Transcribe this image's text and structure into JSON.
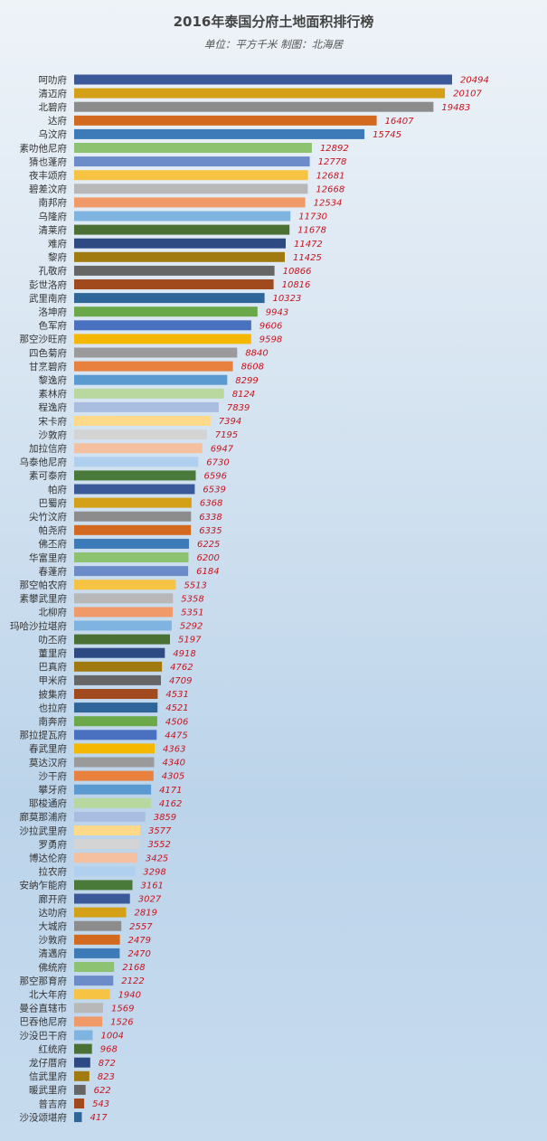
{
  "chart_data": {
    "type": "bar",
    "orientation": "horizontal",
    "title": "2016年泰国分府土地面积排行榜",
    "subtitle": "单位：平方千米 制图：北海居",
    "categories": [
      "呵叻府",
      "清迈府",
      "北碧府",
      "达府",
      "乌汶府",
      "素叻他尼府",
      "猜也蓬府",
      "夜丰颂府",
      "碧差汶府",
      "南邦府",
      "乌隆府",
      "清莱府",
      "难府",
      "黎府",
      "孔敬府",
      "彭世洛府",
      "武里南府",
      "洛坤府",
      "色军府",
      "那空沙旺府",
      "四色菊府",
      "甘烹碧府",
      "黎逸府",
      "素林府",
      "程逸府",
      "宋卡府",
      "沙敦府",
      "加拉信府",
      "乌泰他尼府",
      "素可泰府",
      "帕府",
      "巴蜀府",
      "尖竹汶府",
      "帕尧府",
      "佛丕府",
      "华富里府",
      "春蓬府",
      "那空帕农府",
      "素攀武里府",
      "北柳府",
      "玛哈沙拉堪府",
      "叻丕府",
      "董里府",
      "巴真府",
      "甲米府",
      "披集府",
      "也拉府",
      "南奔府",
      "那拉提瓦府",
      "春武里府",
      "莫达汉府",
      "沙干府",
      "攀牙府",
      "耶梭通府",
      "廊莫那浦府",
      "沙拉武里府",
      "罗勇府",
      "博达伦府",
      "拉农府",
      "安纳乍能府",
      "廊开府",
      "达叻府",
      "大城府",
      "沙敦府",
      "清邁府",
      "佛统府",
      "那空那育府",
      "北大年府",
      "曼谷直辖市",
      "巴吞他尼府",
      "沙没巴干府",
      "红统府",
      "龙仔厝府",
      "信武里府",
      "暖武里府",
      "普吉府",
      "沙没颂堪府"
    ],
    "values": [
      20494,
      20107,
      19483,
      16407,
      15745,
      12892,
      12778,
      12681,
      12668,
      12534,
      11730,
      11678,
      11472,
      11425,
      10866,
      10816,
      10323,
      9943,
      9606,
      9598,
      8840,
      8608,
      8299,
      8124,
      7839,
      7394,
      7195,
      6947,
      6730,
      6596,
      6539,
      6368,
      6338,
      6335,
      6225,
      6200,
      6184,
      5513,
      5358,
      5351,
      5292,
      5197,
      4918,
      4762,
      4709,
      4531,
      4521,
      4506,
      4475,
      4363,
      4340,
      4305,
      4171,
      4162,
      3859,
      3577,
      3552,
      3425,
      3298,
      3161,
      3027,
      2819,
      2557,
      2479,
      2470,
      2168,
      2122,
      1940,
      1569,
      1526,
      1004,
      968,
      872,
      823,
      622,
      543,
      417
    ],
    "colors": [
      "#3b5998",
      "#d4a017",
      "#8c8c8c",
      "#d2691e",
      "#3d7ab8",
      "#8cc270",
      "#6b8cc8",
      "#f6c342",
      "#b8b8b8",
      "#f09a6a",
      "#7fb3e0",
      "#4a7033",
      "#2d4a82",
      "#a07a0e",
      "#666666",
      "#a04a1e",
      "#2e6699",
      "#6ba84a",
      "#4a70c0",
      "#f5b800",
      "#9a9a9a",
      "#e8803e",
      "#5a9ad0",
      "#b8d8a0",
      "#a8bde0",
      "#ffd98a",
      "#d4d4d4",
      "#f5c0a0",
      "#b0d0f0",
      "#4a7a3a"
    ],
    "xlim": [
      0,
      21000
    ],
    "grid": false,
    "legend": "none"
  }
}
